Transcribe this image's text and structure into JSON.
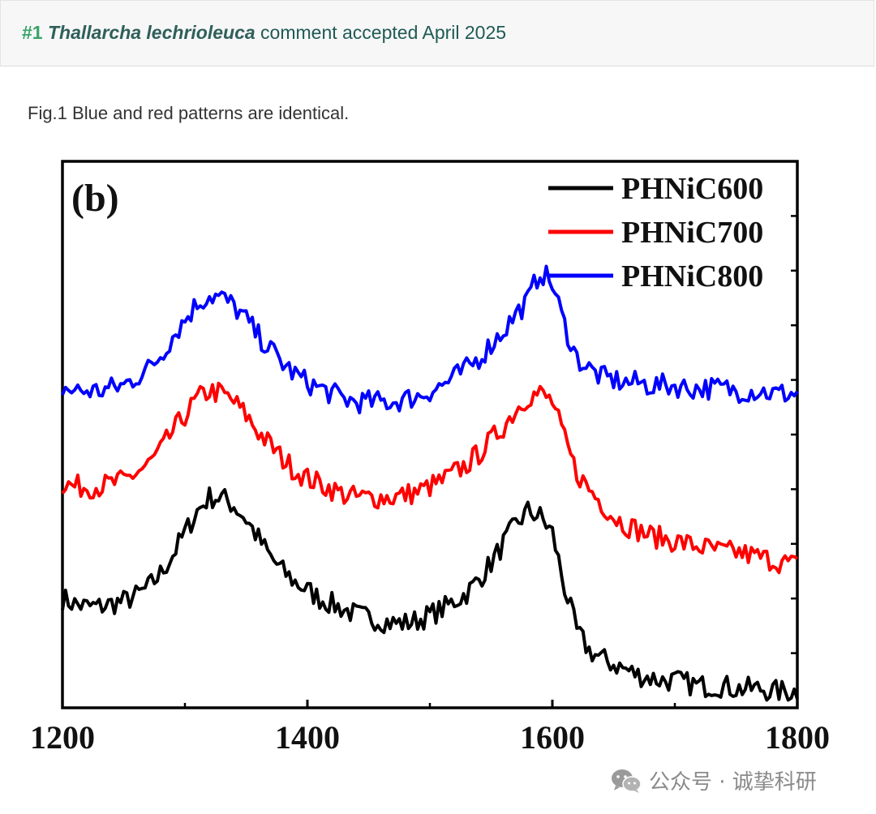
{
  "header": {
    "number": "#1",
    "species": "Thallarcha lechrioleuca",
    "status": "comment accepted April 2025"
  },
  "caption": "Fig.1 Blue and red patterns are identical.",
  "watermark": {
    "icon": "wechat-icon",
    "text": "公众号 · 诚挚科研"
  },
  "chart_data": {
    "type": "line",
    "panel_label": "(b)",
    "xlabel": "",
    "ylabel": "",
    "xlim": [
      1200,
      1800
    ],
    "x_ticks": [
      "1200",
      "1400",
      "1600",
      "1800"
    ],
    "ylim": [
      0,
      100
    ],
    "grid": false,
    "legend_position": "top-right",
    "x": [
      1200,
      1210,
      1220,
      1230,
      1240,
      1250,
      1260,
      1270,
      1280,
      1290,
      1300,
      1310,
      1320,
      1330,
      1340,
      1350,
      1360,
      1370,
      1380,
      1390,
      1400,
      1410,
      1420,
      1430,
      1440,
      1450,
      1460,
      1470,
      1480,
      1490,
      1500,
      1510,
      1520,
      1530,
      1540,
      1550,
      1560,
      1570,
      1580,
      1590,
      1600,
      1610,
      1620,
      1630,
      1640,
      1650,
      1660,
      1670,
      1680,
      1690,
      1700,
      1710,
      1720,
      1730,
      1740,
      1750,
      1760,
      1770,
      1780,
      1790,
      1800
    ],
    "series": [
      {
        "name": "PHNiC600",
        "color": "#000000",
        "values": [
          20.0,
          19.0,
          18.5,
          18.5,
          19.0,
          19.5,
          20.5,
          22.0,
          24.5,
          28.0,
          32.0,
          36.0,
          38.5,
          38.5,
          37.0,
          34.5,
          31.0,
          27.5,
          25.0,
          23.0,
          21.5,
          20.0,
          19.0,
          18.0,
          17.0,
          16.5,
          16.0,
          15.5,
          15.5,
          16.0,
          17.0,
          18.0,
          19.5,
          21.0,
          23.5,
          26.5,
          30.0,
          33.5,
          36.0,
          35.0,
          32.0,
          22.0,
          14.0,
          10.5,
          9.0,
          8.0,
          7.0,
          6.0,
          5.5,
          5.0,
          5.0,
          4.5,
          4.0,
          4.0,
          4.0,
          3.5,
          3.5,
          3.5,
          3.0,
          3.0,
          3.0
        ]
      },
      {
        "name": "PHNiC700",
        "color": "#ff0000",
        "values": [
          41.0,
          40.5,
          40.5,
          40.5,
          41.0,
          41.5,
          43.0,
          44.5,
          47.0,
          50.5,
          53.5,
          56.5,
          58.0,
          57.5,
          56.0,
          53.5,
          50.5,
          48.0,
          45.5,
          43.5,
          42.0,
          41.0,
          40.0,
          39.0,
          38.5,
          38.5,
          38.5,
          38.5,
          39.0,
          39.5,
          40.5,
          41.5,
          43.0,
          44.5,
          46.5,
          49.0,
          51.5,
          54.5,
          57.0,
          57.5,
          56.0,
          49.0,
          43.0,
          40.0,
          37.5,
          35.0,
          33.5,
          32.5,
          31.5,
          31.0,
          30.5,
          30.0,
          29.5,
          29.0,
          28.5,
          28.5,
          28.0,
          27.5,
          27.0,
          26.5,
          26.0
        ]
      },
      {
        "name": "PHNiC800",
        "color": "#0000ff",
        "values": [
          58.5,
          58.0,
          58.0,
          58.0,
          58.5,
          59.0,
          60.5,
          62.0,
          64.5,
          68.0,
          71.0,
          74.0,
          75.5,
          75.0,
          73.5,
          71.0,
          68.0,
          65.5,
          63.0,
          61.0,
          59.5,
          58.5,
          57.5,
          56.5,
          56.0,
          56.0,
          56.0,
          56.0,
          56.5,
          57.0,
          58.0,
          59.0,
          60.5,
          62.0,
          64.0,
          66.5,
          69.0,
          72.0,
          74.5,
          80.0,
          77.5,
          70.0,
          64.0,
          62.0,
          60.5,
          60.0,
          59.5,
          59.5,
          59.0,
          59.0,
          59.0,
          58.5,
          58.5,
          58.5,
          58.5,
          58.0,
          58.0,
          58.0,
          57.5,
          57.5,
          57.5
        ]
      }
    ]
  }
}
